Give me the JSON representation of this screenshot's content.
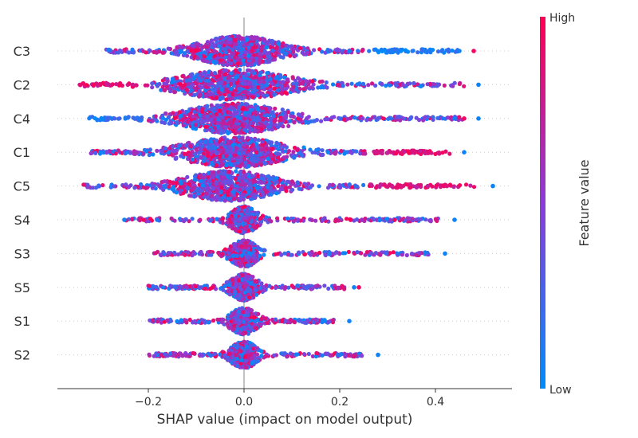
{
  "chart_data": {
    "type": "scatter",
    "subtype": "shap-beeswarm",
    "xlabel": "SHAP value (impact on model output)",
    "ylabel": "",
    "xlim": [
      -0.39,
      0.56
    ],
    "xticks": [
      -0.2,
      0.0,
      0.2,
      0.4
    ],
    "xtick_labels": [
      "−0.2",
      "0.0",
      "0.2",
      "0.4"
    ],
    "grid": false,
    "zero_line": true,
    "colorbar": {
      "label": "Feature value",
      "high_label": "High",
      "low_label": "Low",
      "low_color": "#008bfb",
      "high_color": "#ff0052"
    },
    "features": [
      {
        "name": "C3",
        "min": -0.29,
        "max": 0.48,
        "core_halfwidth": 0.09,
        "core_center": -0.01,
        "tail_color_right": "low",
        "outliers": [
          0.45,
          0.48
        ]
      },
      {
        "name": "C2",
        "min": -0.35,
        "max": 0.49,
        "core_halfwidth": 0.12,
        "core_center": -0.02,
        "tail_color_left": "high",
        "outliers": [
          0.49
        ]
      },
      {
        "name": "C4",
        "min": -0.33,
        "max": 0.49,
        "core_halfwidth": 0.11,
        "core_center": -0.02,
        "tail_color_left": "low",
        "outliers": [
          0.44,
          0.46,
          0.49
        ]
      },
      {
        "name": "C1",
        "min": -0.32,
        "max": 0.46,
        "core_halfwidth": 0.11,
        "core_center": -0.02,
        "tail_color_right": "high",
        "outliers": [
          0.46
        ]
      },
      {
        "name": "C5",
        "min": -0.34,
        "max": 0.52,
        "core_halfwidth": 0.1,
        "core_center": -0.03,
        "tail_color_right": "high",
        "outliers": [
          0.52
        ]
      },
      {
        "name": "S4",
        "min": -0.25,
        "max": 0.44,
        "core_halfwidth": 0.03,
        "core_center": 0.0,
        "outliers": [
          -0.25,
          -0.21,
          0.44
        ]
      },
      {
        "name": "S3",
        "min": -0.19,
        "max": 0.42,
        "core_halfwidth": 0.03,
        "core_center": 0.0,
        "outliers": [
          0.42
        ]
      },
      {
        "name": "S5",
        "min": -0.2,
        "max": 0.24,
        "core_halfwidth": 0.03,
        "core_center": 0.0,
        "outliers": [
          0.23,
          0.24
        ]
      },
      {
        "name": "S1",
        "min": -0.2,
        "max": 0.22,
        "core_halfwidth": 0.03,
        "core_center": 0.0,
        "outliers": [
          0.22
        ]
      },
      {
        "name": "S2",
        "min": -0.2,
        "max": 0.28,
        "core_halfwidth": 0.03,
        "core_center": 0.0,
        "outliers": [
          0.28
        ]
      }
    ]
  }
}
